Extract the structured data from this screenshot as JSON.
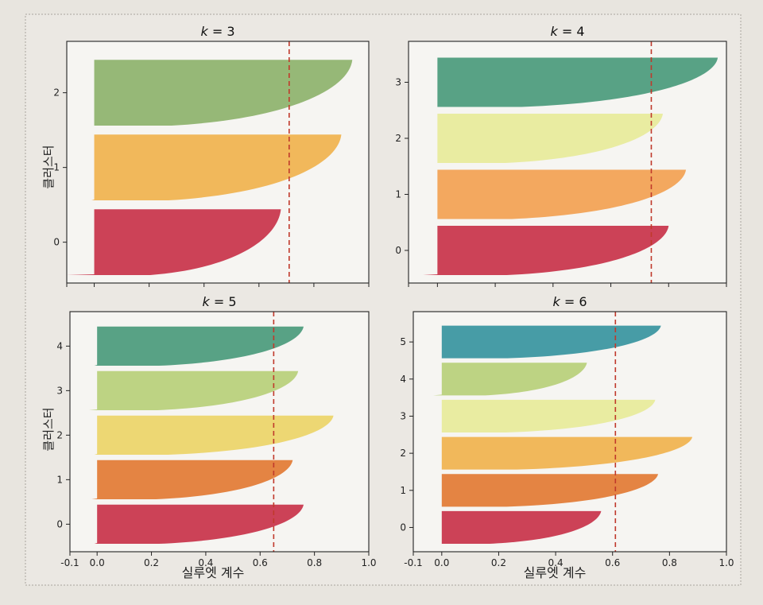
{
  "figure": {
    "ylabel": "클러스터",
    "xlabel": "실루엣 계수",
    "xticks": [
      "-0.1",
      "0.0",
      "0.2",
      "0.4",
      "0.6",
      "0.8",
      "1.0"
    ],
    "xtick_values": [
      -0.1,
      0.0,
      0.2,
      0.4,
      0.6,
      0.8,
      1.0
    ]
  },
  "colors": {
    "green": "#8db26c",
    "orange": "#f0b24e",
    "red": "#c8324a",
    "teal": "#4a9a7c",
    "lightyellow": "#e7ea9a",
    "orange2": "#f2a152",
    "lightgreen": "#b7cf7a",
    "yellow": "#ecd468",
    "darkorange": "#e27a34",
    "blue": "#3794a0",
    "avgline": "#c0392b"
  },
  "chart_data": [
    {
      "type": "bar",
      "title": "k = 3",
      "title_k": "k",
      "title_rest": " = 3",
      "xlim": [
        -0.1,
        1.0
      ],
      "avg_score": 0.71,
      "clusters": [
        {
          "label": "0",
          "max": 0.68,
          "min": -0.1,
          "color": "red"
        },
        {
          "label": "1",
          "max": 0.9,
          "min": -0.01,
          "color": "orange"
        },
        {
          "label": "2",
          "max": 0.94,
          "min": 0.0,
          "color": "green"
        }
      ],
      "ytick_labels": [
        "0",
        "1",
        "2"
      ]
    },
    {
      "type": "bar",
      "title": "k = 4",
      "title_k": "k",
      "title_rest": " = 4",
      "xlim": [
        -0.1,
        1.0
      ],
      "avg_score": 0.74,
      "clusters": [
        {
          "label": "0",
          "max": 0.8,
          "min": -0.05,
          "color": "red"
        },
        {
          "label": "1",
          "max": 0.86,
          "min": 0.0,
          "color": "orange2"
        },
        {
          "label": "2",
          "max": 0.78,
          "min": 0.0,
          "color": "lightyellow"
        },
        {
          "label": "3",
          "max": 0.97,
          "min": 0.0,
          "color": "teal"
        }
      ],
      "ytick_labels": [
        "0",
        "1",
        "2",
        "3"
      ]
    },
    {
      "type": "bar",
      "title": "k = 5",
      "title_k": "k",
      "title_rest": " = 5",
      "xlim": [
        -0.1,
        1.0
      ],
      "avg_score": 0.65,
      "clusters": [
        {
          "label": "0",
          "max": 0.76,
          "min": -0.01,
          "color": "red"
        },
        {
          "label": "1",
          "max": 0.72,
          "min": -0.02,
          "color": "darkorange"
        },
        {
          "label": "2",
          "max": 0.87,
          "min": -0.01,
          "color": "yellow"
        },
        {
          "label": "3",
          "max": 0.74,
          "min": -0.03,
          "color": "lightgreen"
        },
        {
          "label": "4",
          "max": 0.76,
          "min": -0.01,
          "color": "teal"
        }
      ],
      "ytick_labels": [
        "0",
        "1",
        "2",
        "3",
        "4"
      ]
    },
    {
      "type": "bar",
      "title": "k = 6",
      "title_k": "k",
      "title_rest": " = 6",
      "xlim": [
        -0.1,
        1.0
      ],
      "avg_score": 0.61,
      "clusters": [
        {
          "label": "0",
          "max": 0.56,
          "min": 0.0,
          "color": "red"
        },
        {
          "label": "1",
          "max": 0.76,
          "min": 0.0,
          "color": "darkorange"
        },
        {
          "label": "2",
          "max": 0.88,
          "min": 0.0,
          "color": "orange"
        },
        {
          "label": "3",
          "max": 0.75,
          "min": 0.0,
          "color": "lightyellow"
        },
        {
          "label": "4",
          "max": 0.51,
          "min": -0.03,
          "color": "lightgreen"
        },
        {
          "label": "5",
          "max": 0.77,
          "min": 0.0,
          "color": "blue"
        }
      ],
      "ytick_labels": [
        "0",
        "1",
        "2",
        "3",
        "4",
        "5"
      ]
    }
  ]
}
